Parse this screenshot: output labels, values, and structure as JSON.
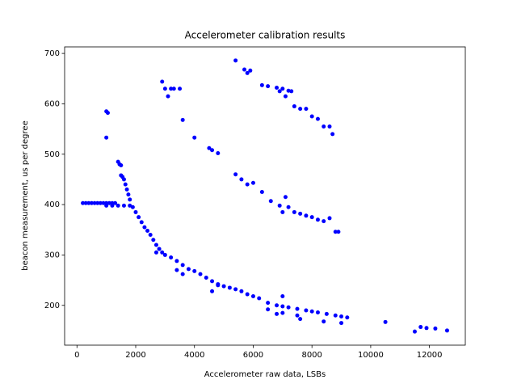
{
  "chart_data": {
    "type": "scatter",
    "title": "Accelerometer calibration results",
    "x_label": "Accelerometer raw data, LSBs",
    "y_label": "beacon measurement, us per degree",
    "color": "blue",
    "x": [
      200,
      300,
      400,
      500,
      600,
      700,
      800,
      900,
      1000,
      1100,
      1200,
      1300,
      1000,
      1200,
      1400,
      1600,
      1800,
      1000,
      1050,
      1000,
      1400,
      1450,
      1500,
      1500,
      1550,
      1600,
      1650,
      1700,
      1750,
      1800,
      1900,
      2000,
      2100,
      2200,
      2300,
      2400,
      2500,
      2600,
      2700,
      2800,
      2900,
      3000,
      3200,
      3400,
      3600,
      3800,
      4000,
      4200,
      4400,
      4600,
      4800,
      5000,
      5200,
      5400,
      5600,
      5800,
      6000,
      6200,
      6500,
      6800,
      7000,
      7200,
      7500,
      7800,
      8000,
      8200,
      8500,
      8800,
      9000,
      9200,
      10500,
      11500,
      11700,
      11900,
      12200,
      12600,
      2700,
      3600,
      4600,
      4800,
      6800,
      7000,
      7000,
      7500,
      7600,
      8400,
      9000,
      6500,
      3400,
      2900,
      3000,
      3100,
      3200,
      3300,
      3500,
      3600,
      4000,
      4500,
      4600,
      4800,
      5400,
      5600,
      5800,
      6000,
      6300,
      6600,
      6900,
      7100,
      7200,
      7400,
      7600,
      7800,
      8000,
      8200,
      8400,
      8600,
      8800,
      8900,
      7000,
      5400,
      5700,
      5800,
      5900,
      6300,
      6500,
      6800,
      6900,
      7000,
      7200,
      7100,
      7300,
      7400,
      7600,
      7800,
      8000,
      8200,
      8400,
      8600,
      8700
    ],
    "values": [
      403,
      403,
      403,
      403,
      403,
      403,
      403,
      403,
      403,
      403,
      403,
      403,
      398,
      398,
      398,
      398,
      398,
      585,
      582,
      533,
      485,
      480,
      478,
      458,
      455,
      450,
      440,
      430,
      420,
      410,
      395,
      385,
      375,
      365,
      355,
      348,
      340,
      330,
      320,
      312,
      305,
      300,
      295,
      288,
      280,
      272,
      268,
      262,
      255,
      248,
      242,
      238,
      235,
      232,
      228,
      222,
      218,
      214,
      205,
      200,
      198,
      196,
      193,
      190,
      188,
      186,
      183,
      180,
      178,
      176,
      167,
      148,
      157,
      155,
      154,
      150,
      305,
      262,
      228,
      240,
      183,
      218,
      185,
      180,
      173,
      168,
      165,
      192,
      270,
      644,
      630,
      615,
      630,
      630,
      630,
      568,
      533,
      512,
      508,
      502,
      460,
      450,
      440,
      443,
      425,
      407,
      398,
      415,
      395,
      385,
      382,
      378,
      375,
      370,
      367,
      373,
      346,
      346,
      385,
      686,
      668,
      661,
      666,
      637,
      635,
      632,
      625,
      630,
      626,
      615,
      625,
      595,
      590,
      590,
      575,
      570,
      555,
      555,
      540
    ],
    "xlim": [
      -420,
      13220
    ],
    "ylim": [
      121,
      713
    ],
    "xticks": [
      0,
      2000,
      4000,
      6000,
      8000,
      10000,
      12000
    ],
    "yticks": [
      200,
      300,
      400,
      500,
      600,
      700
    ]
  }
}
